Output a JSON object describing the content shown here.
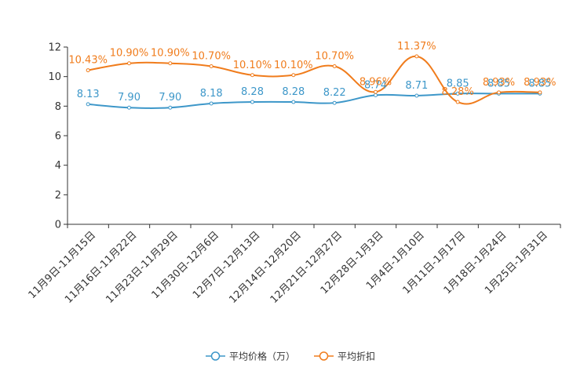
{
  "chart_data": {
    "type": "line",
    "categories": [
      "11月9日-11月15日",
      "11月16日-11月22日",
      "11月23日-11月29日",
      "11月30日-12月6日",
      "12月7日-12月13日",
      "12月14日-12月20日",
      "12月21日-12月27日",
      "12月28日-1月3日",
      "1月4日-1月10日",
      "1月11日-1月17日",
      "1月18日-1月24日",
      "1月25日-1月31日"
    ],
    "ylim": [
      0,
      12
    ],
    "yticks": [
      0,
      2,
      4,
      6,
      8,
      10,
      12
    ],
    "series": [
      {
        "name": "平均价格（万）",
        "color": "#3d97c9",
        "values": [
          8.13,
          7.9,
          7.9,
          8.18,
          8.28,
          8.28,
          8.22,
          8.74,
          8.71,
          8.85,
          8.85,
          8.85
        ],
        "labels": [
          "8.13",
          "7.90",
          "7.90",
          "8.18",
          "8.28",
          "8.28",
          "8.22",
          "8.74",
          "8.71",
          "8.85",
          "8.85",
          "8.85"
        ]
      },
      {
        "name": "平均折扣",
        "color": "#f07c1c",
        "values": [
          10.43,
          10.9,
          10.9,
          10.7,
          10.1,
          10.1,
          10.7,
          8.96,
          11.37,
          8.28,
          8.93,
          8.93
        ],
        "labels": [
          "10.43%",
          "10.90%",
          "10.90%",
          "10.70%",
          "10.10%",
          "10.10%",
          "10.70%",
          "8.96%",
          "11.37%",
          "8.28%",
          "8.93%",
          "8.93%"
        ]
      }
    ],
    "legend": {
      "position": "bottom-center",
      "items": [
        "平均价格（万）",
        "平均折扣"
      ]
    }
  }
}
